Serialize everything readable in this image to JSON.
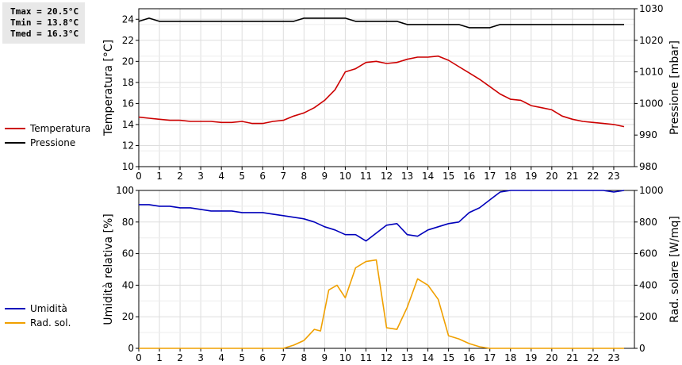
{
  "stats": {
    "tmax": "Tmax = 20.5°C",
    "tmin": "Tmin = 13.8°C",
    "tmed": "Tmed = 16.3°C"
  },
  "legend_top": [
    {
      "label": "Temperatura",
      "color": "#cc0000"
    },
    {
      "label": "Pressione",
      "color": "#000000"
    }
  ],
  "legend_bottom": [
    {
      "label": "Umidità",
      "color": "#0000bb"
    },
    {
      "label": "Rad. sol.",
      "color": "#f0a000"
    }
  ],
  "chart_data": [
    {
      "type": "line",
      "grid": true,
      "x_ticks": [
        0,
        1,
        2,
        3,
        4,
        5,
        6,
        7,
        8,
        9,
        10,
        11,
        12,
        13,
        14,
        15,
        16,
        17,
        18,
        19,
        20,
        21,
        22,
        23
      ],
      "xlim": [
        0,
        24
      ],
      "ylabel": "Temperatura [°C]",
      "ylim": [
        10,
        25
      ],
      "y_ticks": [
        10,
        12,
        14,
        16,
        18,
        20,
        22,
        24
      ],
      "y2label": "Pressione [mbar]",
      "y2lim": [
        980,
        1030
      ],
      "y2_ticks": [
        980,
        990,
        1000,
        1010,
        1020,
        1030
      ],
      "series": [
        {
          "name": "Temperatura",
          "axis": "left",
          "color": "#cc0000",
          "x": [
            0,
            0.5,
            1,
            1.5,
            2,
            2.5,
            3,
            3.5,
            4,
            4.5,
            5,
            5.5,
            6,
            6.5,
            7,
            7.5,
            8,
            8.5,
            9,
            9.5,
            10,
            10.5,
            11,
            11.5,
            12,
            12.5,
            13,
            13.5,
            14,
            14.5,
            15,
            15.5,
            16,
            16.5,
            17,
            17.5,
            18,
            18.5,
            19,
            19.5,
            20,
            20.5,
            21,
            21.5,
            22,
            22.5,
            23,
            23.5
          ],
          "values": [
            14.7,
            14.6,
            14.5,
            14.4,
            14.4,
            14.3,
            14.3,
            14.3,
            14.2,
            14.2,
            14.3,
            14.1,
            14.1,
            14.3,
            14.4,
            14.8,
            15.1,
            15.6,
            16.3,
            17.3,
            19.0,
            19.3,
            19.9,
            20.0,
            19.8,
            19.9,
            20.2,
            20.4,
            20.4,
            20.5,
            20.1,
            19.5,
            18.9,
            18.3,
            17.6,
            16.9,
            16.4,
            16.3,
            15.8,
            15.6,
            15.4,
            14.8,
            14.5,
            14.3,
            14.2,
            14.1,
            14.0,
            13.8
          ]
        },
        {
          "name": "Pressione",
          "axis": "right",
          "color": "#000000",
          "x": [
            0,
            0.5,
            1,
            1.5,
            2,
            3,
            4,
            5,
            6,
            7,
            7.5,
            8,
            9,
            10,
            10.5,
            11,
            12,
            12.5,
            13,
            14,
            15,
            15.5,
            16,
            17,
            17.5,
            18,
            19,
            20,
            21,
            22,
            23,
            23.5
          ],
          "values": [
            1026,
            1027,
            1026,
            1026,
            1026,
            1026,
            1026,
            1026,
            1026,
            1026,
            1026,
            1027,
            1027,
            1027,
            1026,
            1026,
            1026,
            1026,
            1025,
            1025,
            1025,
            1025,
            1024,
            1024,
            1025,
            1025,
            1025,
            1025,
            1025,
            1025,
            1025,
            1025
          ]
        }
      ]
    },
    {
      "type": "line",
      "grid": true,
      "x_ticks": [
        0,
        1,
        2,
        3,
        4,
        5,
        6,
        7,
        8,
        9,
        10,
        11,
        12,
        13,
        14,
        15,
        16,
        17,
        18,
        19,
        20,
        21,
        22,
        23
      ],
      "xlim": [
        0,
        24
      ],
      "ylabel": "Umidità relativa [%]",
      "ylim": [
        0,
        100
      ],
      "y_ticks": [
        0,
        20,
        40,
        60,
        80,
        100
      ],
      "y2label": "Rad. solare [W/mq]",
      "y2lim": [
        0,
        1000
      ],
      "y2_ticks": [
        0,
        200,
        400,
        600,
        800,
        1000
      ],
      "series": [
        {
          "name": "Umidità",
          "axis": "left",
          "color": "#0000bb",
          "x": [
            0,
            0.5,
            1,
            1.5,
            2,
            2.5,
            3,
            3.5,
            4,
            4.5,
            5,
            5.5,
            6,
            6.5,
            7,
            7.5,
            8,
            8.5,
            9,
            9.5,
            10,
            10.5,
            11,
            11.5,
            12,
            12.5,
            13,
            13.5,
            14,
            14.5,
            15,
            15.5,
            16,
            16.5,
            17,
            17.5,
            18,
            18.5,
            19,
            19.5,
            20,
            20.5,
            21,
            21.5,
            22,
            22.5,
            23,
            23.5
          ],
          "values": [
            91,
            91,
            90,
            90,
            89,
            89,
            88,
            87,
            87,
            87,
            86,
            86,
            86,
            85,
            84,
            83,
            82,
            80,
            77,
            75,
            72,
            72,
            68,
            73,
            78,
            79,
            72,
            71,
            75,
            77,
            79,
            80,
            86,
            89,
            94,
            99,
            100,
            100,
            100,
            100,
            100,
            100,
            100,
            100,
            100,
            100,
            99,
            100
          ]
        },
        {
          "name": "Rad. sol.",
          "axis": "right",
          "color": "#f0a000",
          "x": [
            0,
            1,
            2,
            3,
            4,
            5,
            6,
            7,
            7.5,
            8,
            8.5,
            8.8,
            9.2,
            9.6,
            10,
            10.5,
            11,
            11.5,
            12,
            12.5,
            13,
            13.5,
            14,
            14.5,
            15,
            15.5,
            16,
            16.5,
            17,
            17.5,
            18,
            19,
            20,
            21,
            22,
            23,
            23.5
          ],
          "values": [
            0,
            0,
            0,
            0,
            0,
            0,
            0,
            0,
            20,
            50,
            120,
            110,
            370,
            400,
            320,
            510,
            550,
            560,
            130,
            120,
            260,
            440,
            400,
            310,
            80,
            60,
            30,
            10,
            0,
            0,
            0,
            0,
            0,
            0,
            0,
            0,
            0
          ]
        }
      ]
    }
  ]
}
